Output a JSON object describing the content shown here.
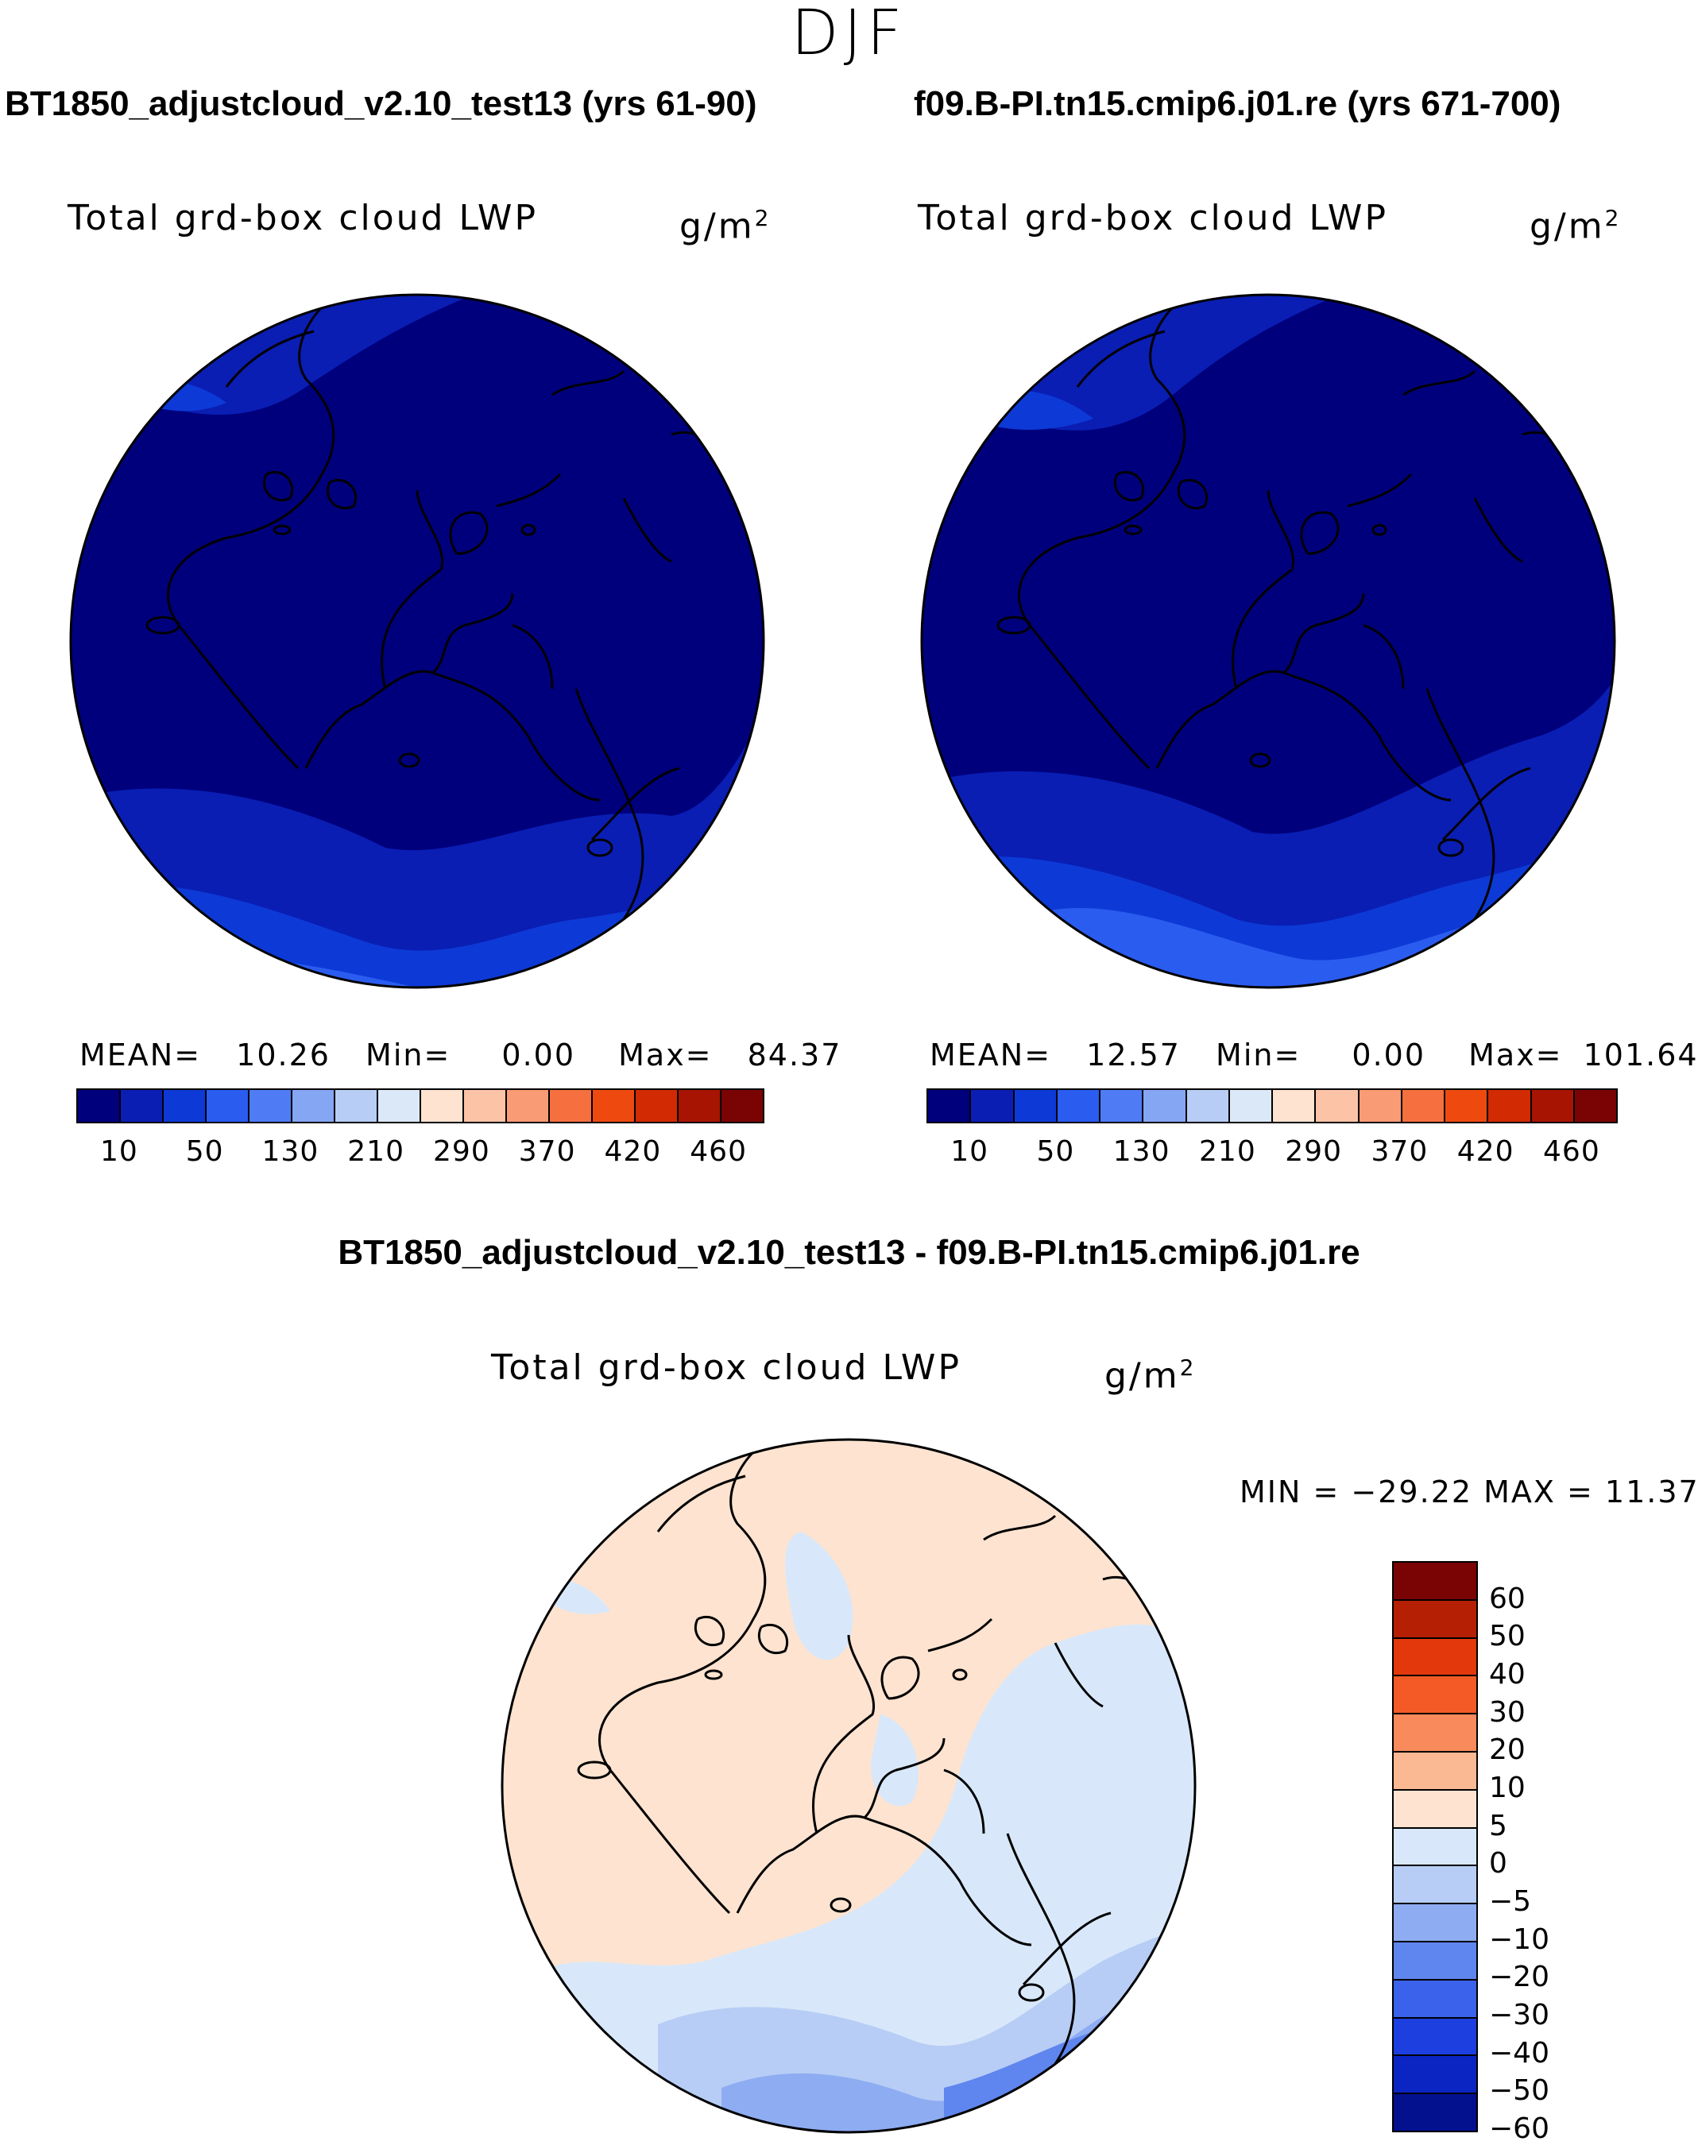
{
  "figure": {
    "season": "DJF",
    "diff_title": "BT1850_adjustcloud_v2.10_test13 - f09.B-PI.tn15.cmip6.j01.re"
  },
  "chart_data": [
    {
      "type": "heatmap",
      "projection": "north polar stereographic",
      "title": "BT1850_adjustcloud_v2.10_test13 (yrs 61-90)",
      "variable": "Total grd-box cloud LWP",
      "units_base": "g/m",
      "units_exp": "2",
      "mean_label": "MEAN=",
      "mean": "10.26",
      "min_label": "Min=",
      "min": "0.00",
      "max_label": "Max=",
      "max": "84.37",
      "levels": [
        "10",
        "50",
        "130",
        "210",
        "290",
        "370",
        "420",
        "460"
      ],
      "colors": [
        "#00007d",
        "#0a1eb4",
        "#0d3ad6",
        "#2a5cf0",
        "#4f7cf5",
        "#85a6f2",
        "#b7cdf5",
        "#dbe8f8",
        "#fde3d0",
        "#fcc3a6",
        "#f99b74",
        "#f56f3f",
        "#ee4a10",
        "#d22a02",
        "#a81402",
        "#7a0403"
      ]
    },
    {
      "type": "heatmap",
      "projection": "north polar stereographic",
      "title": "f09.B-PI.tn15.cmip6.j01.re (yrs 671-700)",
      "variable": "Total grd-box cloud LWP",
      "units_base": "g/m",
      "units_exp": "2",
      "mean_label": "MEAN=",
      "mean": "12.57",
      "min_label": "Min=",
      "min": "0.00",
      "max_label": "Max=",
      "max": "101.64",
      "levels": [
        "10",
        "50",
        "130",
        "210",
        "290",
        "370",
        "420",
        "460"
      ],
      "colors": [
        "#00007d",
        "#0a1eb4",
        "#0d3ad6",
        "#2a5cf0",
        "#4f7cf5",
        "#85a6f2",
        "#b7cdf5",
        "#dbe8f8",
        "#fde3d0",
        "#fcc3a6",
        "#f99b74",
        "#f56f3f",
        "#ee4a10",
        "#d22a02",
        "#a81402",
        "#7a0403"
      ]
    },
    {
      "type": "heatmap",
      "projection": "north polar stereographic",
      "title": "BT1850_adjustcloud_v2.10_test13 - f09.B-PI.tn15.cmip6.j01.re",
      "variable": "Total grd-box cloud LWP",
      "units_base": "g/m",
      "units_exp": "2",
      "minmax_text": "MIN = −29.22 MAX =   11.37",
      "levels": [
        "60",
        "50",
        "40",
        "30",
        "20",
        "10",
        "5",
        "0",
        "−5",
        "−10",
        "−20",
        "−30",
        "−40",
        "−50",
        "−60"
      ],
      "colors": [
        "#7a0403",
        "#b51f04",
        "#e2380b",
        "#f35a25",
        "#f88a5c",
        "#fab893",
        "#fde3d0",
        "#d8e8fa",
        "#b7cdf5",
        "#8eacf1",
        "#5f85ee",
        "#3a62ea",
        "#1d3fe0",
        "#0a25c2",
        "#03118e"
      ]
    }
  ]
}
